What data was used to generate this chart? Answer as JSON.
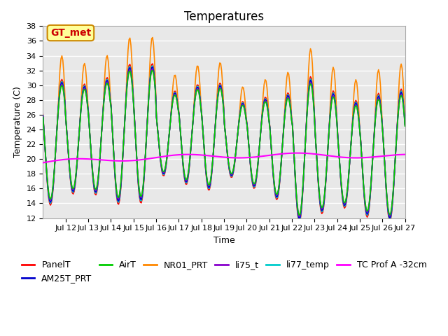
{
  "title": "Temperatures",
  "xlabel": "Time",
  "ylabel": "Temperature (C)",
  "ylim": [
    12,
    38
  ],
  "yticks": [
    12,
    14,
    16,
    18,
    20,
    22,
    24,
    26,
    28,
    30,
    32,
    34,
    36,
    38
  ],
  "xtick_labels": [
    "Jul 12",
    "Jul 13",
    "Jul 14",
    "Jul 15",
    "Jul 16",
    "Jul 17",
    "Jul 18",
    "Jul 19",
    "Jul 20",
    "Jul 21",
    "Jul 22",
    "Jul 23",
    "Jul 24",
    "Jul 25",
    "Jul 26",
    "Jul 27"
  ],
  "series_colors": {
    "PanelT": "#ff0000",
    "AM25T_PRT": "#0000cc",
    "AirT": "#00cc00",
    "NR01_PRT": "#ff8800",
    "li75_t": "#8800cc",
    "li77_temp": "#00cccc",
    "TC Prof A -32cm": "#ff00ff"
  },
  "annotation_text": "GT_met",
  "annotation_bg": "#ffff99",
  "annotation_border": "#cc8800",
  "annotation_text_color": "#cc0000",
  "bg_color": "#e8e8e8",
  "grid_color": "#ffffff",
  "title_fontsize": 12,
  "axis_label_fontsize": 9,
  "tick_fontsize": 8,
  "legend_fontsize": 9
}
